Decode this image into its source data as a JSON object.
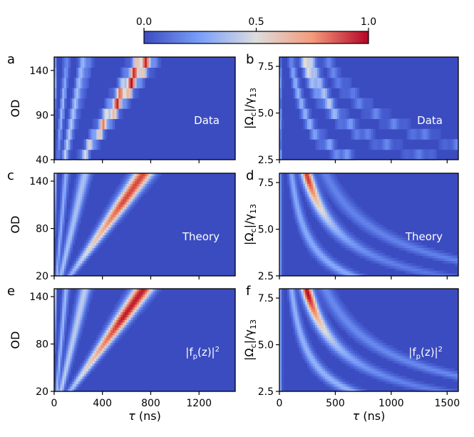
{
  "colorbar": {
    "ticks": [
      "0.0",
      "0.5",
      "1.0"
    ],
    "range": [
      0,
      1
    ],
    "colormap": "coolwarm",
    "colors": [
      "#3b4cc0",
      "#dddddd",
      "#b40426"
    ]
  },
  "chart_data": [
    {
      "panel": "a",
      "type": "heatmap",
      "text": "Data",
      "xlabel": "",
      "ylabel": "OD",
      "ylabel_kind": "od",
      "xlim": [
        0,
        1500
      ],
      "ylim": [
        40,
        155
      ],
      "xticks": [
        0,
        400,
        800,
        1200
      ],
      "xticklabels": [
        "",
        "",
        "",
        ""
      ],
      "yticks": [
        40,
        90,
        140
      ],
      "yticklabels": [
        "40",
        "90",
        "140"
      ],
      "model": "od",
      "rows": [
        {
          "y": 145,
          "peak_x": 800
        },
        {
          "y": 135,
          "peak_x": 760
        },
        {
          "y": 124,
          "peak_x": 700
        },
        {
          "y": 113,
          "peak_x": 650
        },
        {
          "y": 102,
          "peak_x": 590
        },
        {
          "y": 91,
          "peak_x": 540
        },
        {
          "y": 80,
          "peak_x": 480
        },
        {
          "y": 69,
          "peak_x": 430
        },
        {
          "y": 58,
          "peak_x": 380
        },
        {
          "y": 47,
          "peak_x": 330
        }
      ]
    },
    {
      "panel": "b",
      "type": "heatmap",
      "text": "Data",
      "xlabel": "",
      "ylabel": "|Ωc|/γ13",
      "ylabel_kind": "omega",
      "xlim": [
        0,
        1600
      ],
      "ylim": [
        2.5,
        8.0
      ],
      "xticks": [
        0,
        500,
        1000,
        1500
      ],
      "xticklabels": [
        "",
        "",
        "",
        ""
      ],
      "yticks": [
        2.5,
        5.0,
        7.5
      ],
      "yticklabels": [
        "2.5",
        "5.0",
        "7.5"
      ],
      "model": "omega",
      "rows": [
        {
          "y": 7.6,
          "peak_x": 200
        },
        {
          "y": 7.0,
          "peak_x": 240
        },
        {
          "y": 6.4,
          "peak_x": 300
        },
        {
          "y": 5.8,
          "peak_x": 360
        },
        {
          "y": 5.2,
          "peak_x": 430
        },
        {
          "y": 4.6,
          "peak_x": 520
        },
        {
          "y": 4.0,
          "peak_x": 640
        },
        {
          "y": 3.5,
          "peak_x": 800
        },
        {
          "y": 3.0,
          "peak_x": 1000
        },
        {
          "y": 2.7,
          "peak_x": 1200
        }
      ]
    },
    {
      "panel": "c",
      "type": "heatmap",
      "text": "Theory",
      "xlabel": "",
      "ylabel": "OD",
      "ylabel_kind": "od",
      "xlim": [
        0,
        1500
      ],
      "ylim": [
        20,
        150
      ],
      "xticks": [
        0,
        400,
        800,
        1200
      ],
      "xticklabels": [
        "",
        "",
        "",
        ""
      ],
      "yticks": [
        20,
        80,
        140
      ],
      "yticklabels": [
        "20",
        "80",
        "140"
      ],
      "model": "od",
      "rows": []
    },
    {
      "panel": "d",
      "type": "heatmap",
      "text": "Theory",
      "xlabel": "",
      "ylabel": "|Ωc|/γ13",
      "ylabel_kind": "omega",
      "xlim": [
        0,
        1600
      ],
      "ylim": [
        2.5,
        8.0
      ],
      "xticks": [
        0,
        500,
        1000,
        1500
      ],
      "xticklabels": [
        "",
        "",
        "",
        ""
      ],
      "yticks": [
        2.5,
        5.0,
        7.5
      ],
      "yticklabels": [
        "2.5",
        "5.0",
        "7.5"
      ],
      "model": "omega",
      "rows": []
    },
    {
      "panel": "e",
      "type": "heatmap",
      "text": "|fp(z)|²",
      "xlabel": "τ (ns)",
      "ylabel": "OD",
      "ylabel_kind": "od",
      "xlim": [
        0,
        1500
      ],
      "ylim": [
        20,
        150
      ],
      "xticks": [
        0,
        400,
        800,
        1200
      ],
      "xticklabels": [
        "0",
        "400",
        "800",
        "1200"
      ],
      "yticks": [
        20,
        80,
        140
      ],
      "yticklabels": [
        "20",
        "80",
        "140"
      ],
      "model": "od",
      "rows": []
    },
    {
      "panel": "f",
      "type": "heatmap",
      "text": "|fp(z)|²",
      "xlabel": "τ (ns)",
      "ylabel": "|Ωc|/γ13",
      "ylabel_kind": "omega",
      "xlim": [
        0,
        1600
      ],
      "ylim": [
        2.5,
        8.0
      ],
      "xticks": [
        0,
        500,
        1000,
        1500
      ],
      "xticklabels": [
        "0",
        "500",
        "1000",
        "1500"
      ],
      "yticks": [
        2.5,
        5.0,
        7.5
      ],
      "yticklabels": [
        "2.5",
        "5.0",
        "7.5"
      ],
      "model": "omega",
      "rows": []
    }
  ]
}
